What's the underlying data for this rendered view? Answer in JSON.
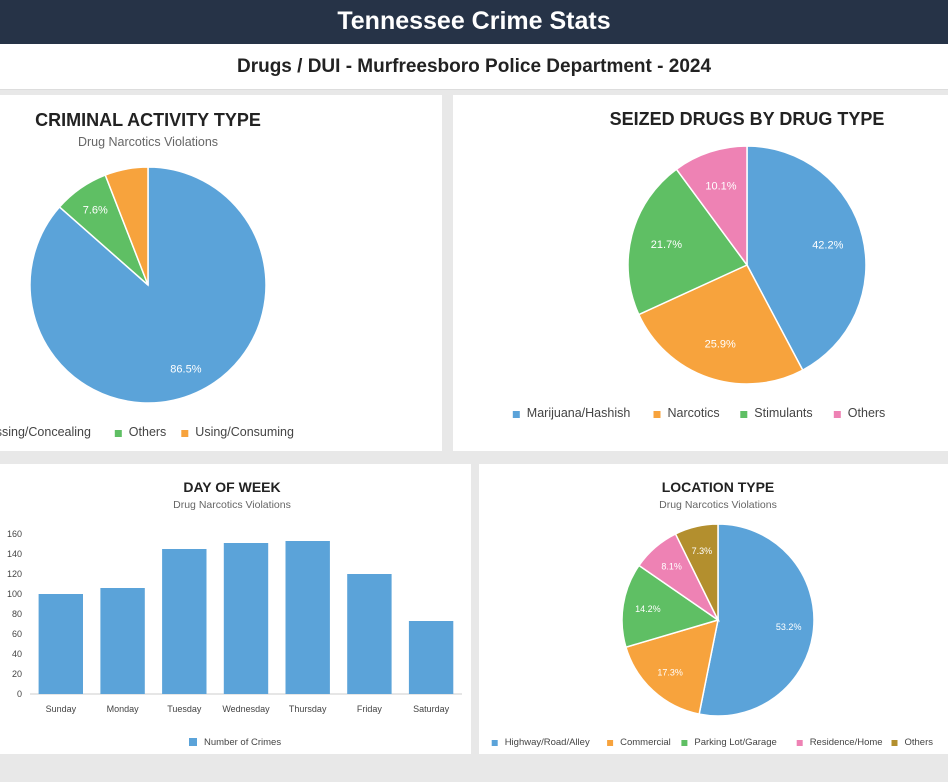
{
  "header": {
    "title": "Tennessee Crime Stats"
  },
  "subheader": {
    "title": "Drugs / DUI - Murfreesboro Police Department - 2024"
  },
  "colors": {
    "blue": "#5ba3d9",
    "orange": "#f7a33d",
    "green": "#5fbf64",
    "pink": "#ee82b4",
    "olive": "#b38f2e",
    "header_bg": "#263347"
  },
  "chart_data": [
    {
      "type": "pie",
      "title": "CRIMINAL ACTIVITY TYPE",
      "subtitle": "Drug Narcotics Violations",
      "categories": [
        "Possessing/Concealing",
        "Others",
        "Using/Consuming"
      ],
      "values": [
        86.5,
        7.6,
        5.9
      ],
      "labels": [
        "86.5%",
        "7.6%",
        ""
      ],
      "colors": [
        "#5ba3d9",
        "#5fbf64",
        "#f7a33d"
      ],
      "legend": "bottom"
    },
    {
      "type": "pie",
      "title": "SEIZED DRUGS BY DRUG TYPE",
      "subtitle": "",
      "categories": [
        "Marijuana/Hashish",
        "Narcotics",
        "Stimulants",
        "Others"
      ],
      "values": [
        42.2,
        25.9,
        21.7,
        10.1
      ],
      "labels": [
        "42.2%",
        "25.9%",
        "21.7%",
        "10.1%"
      ],
      "colors": [
        "#5ba3d9",
        "#f7a33d",
        "#5fbf64",
        "#ee82b4"
      ],
      "legend": "bottom"
    },
    {
      "type": "bar",
      "title": "DAY OF WEEK",
      "subtitle": "Drug Narcotics Violations",
      "categories": [
        "Sunday",
        "Monday",
        "Tuesday",
        "Wednesday",
        "Thursday",
        "Friday",
        "Saturday"
      ],
      "series": [
        {
          "name": "Number of Crimes",
          "values": [
            100,
            106,
            145,
            151,
            153,
            120,
            73
          ]
        }
      ],
      "yticks": [
        "0",
        "20",
        "40",
        "60",
        "80",
        "100",
        "120",
        "140",
        "160"
      ],
      "ylim": [
        0,
        160
      ],
      "grid": false,
      "legend": "bottom",
      "color": "#5ba3d9"
    },
    {
      "type": "pie",
      "title": "LOCATION TYPE",
      "subtitle": "Drug Narcotics Violations",
      "categories": [
        "Highway/Road/Alley",
        "Commercial",
        "Parking Lot/Garage",
        "Residence/Home",
        "Others"
      ],
      "values": [
        53.2,
        17.3,
        14.2,
        8.1,
        7.3
      ],
      "labels": [
        "53.2%",
        "17.3%",
        "14.2%",
        "8.1%",
        "7.3%"
      ],
      "colors": [
        "#5ba3d9",
        "#f7a33d",
        "#5fbf64",
        "#ee82b4",
        "#b38f2e"
      ],
      "legend": "bottom"
    }
  ]
}
